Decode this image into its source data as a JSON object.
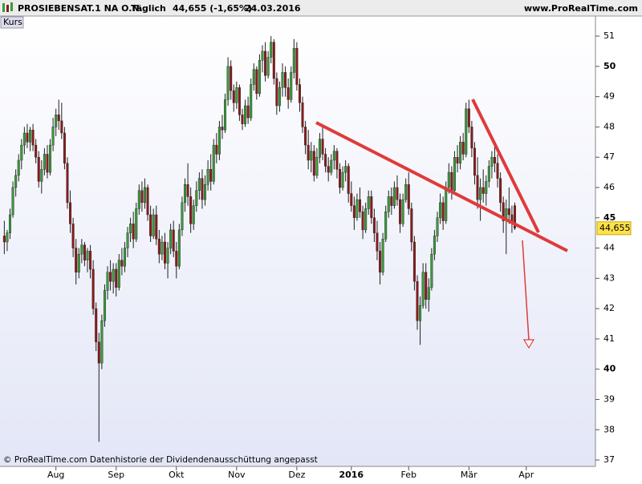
{
  "header": {
    "title": "PROSIEBENSAT.1  NA O.N.",
    "period": "Täglich",
    "quote": "44,655 (-1,65%)",
    "date": "24.03.2016",
    "source": "www.ProRealTime.com"
  },
  "panel_label": "Kurs",
  "footer": "© ProRealTime.com Datenhistorie der Dividendenausschüttung angepasst",
  "chart_data": {
    "type": "candlestick",
    "up_color": "#3a9a3a",
    "down_color": "#8b1a1a",
    "last_price_label": "44,655",
    "xlim": [
      -1.5,
      204.5
    ],
    "xticks": [
      {
        "value": 18,
        "label": "Aug"
      },
      {
        "value": 39,
        "label": "Sep"
      },
      {
        "value": 60,
        "label": "Okt"
      },
      {
        "value": 81,
        "label": "Nov"
      },
      {
        "value": 102,
        "label": "Dez"
      },
      {
        "value": 121,
        "label": "2016"
      },
      {
        "value": 141,
        "label": "Feb"
      },
      {
        "value": 162,
        "label": "Mär"
      },
      {
        "value": 182,
        "label": "Apr"
      }
    ],
    "ylim": [
      36.79,
      51.61
    ],
    "yticks": [
      37,
      38,
      39,
      40,
      41,
      42,
      43,
      44,
      45,
      46,
      47,
      48,
      49,
      50,
      51
    ],
    "ohlc": [
      [
        44.4,
        44.9,
        43.8,
        44.2
      ],
      [
        44.2,
        44.6,
        43.9,
        44.5
      ],
      [
        44.5,
        45.3,
        44.3,
        45.1
      ],
      [
        45.1,
        46.2,
        45.0,
        46.0
      ],
      [
        46.0,
        46.6,
        45.7,
        46.4
      ],
      [
        46.4,
        47.1,
        46.2,
        46.9
      ],
      [
        46.9,
        47.6,
        46.6,
        47.4
      ],
      [
        47.4,
        48.0,
        47.1,
        47.8
      ],
      [
        47.8,
        48.1,
        47.3,
        47.5
      ],
      [
        47.5,
        48.0,
        47.2,
        47.9
      ],
      [
        47.9,
        48.1,
        47.2,
        47.4
      ],
      [
        47.4,
        47.6,
        46.8,
        47.0
      ],
      [
        47.0,
        47.2,
        46.0,
        46.2
      ],
      [
        46.2,
        46.9,
        45.8,
        46.6
      ],
      [
        46.6,
        47.3,
        46.4,
        47.1
      ],
      [
        47.1,
        47.4,
        46.3,
        46.5
      ],
      [
        46.5,
        47.6,
        46.4,
        47.4
      ],
      [
        47.4,
        48.3,
        47.2,
        48.0
      ],
      [
        48.0,
        48.6,
        47.7,
        48.4
      ],
      [
        48.4,
        48.9,
        47.9,
        48.2
      ],
      [
        48.2,
        48.8,
        47.6,
        47.8
      ],
      [
        47.8,
        48.0,
        46.6,
        46.8
      ],
      [
        46.8,
        47.0,
        45.3,
        45.5
      ],
      [
        45.5,
        45.9,
        44.5,
        44.8
      ],
      [
        44.8,
        45.0,
        43.7,
        44.0
      ],
      [
        44.0,
        44.3,
        42.8,
        43.2
      ],
      [
        43.2,
        44.0,
        43.0,
        43.8
      ],
      [
        43.8,
        44.3,
        43.5,
        44.1
      ],
      [
        44.1,
        44.2,
        43.4,
        43.6
      ],
      [
        43.6,
        44.0,
        43.2,
        43.9
      ],
      [
        43.9,
        44.1,
        43.0,
        43.3
      ],
      [
        43.3,
        43.6,
        41.8,
        42.0
      ],
      [
        42.0,
        42.2,
        40.6,
        40.9
      ],
      [
        40.9,
        41.2,
        37.6,
        40.2
      ],
      [
        40.2,
        41.8,
        40.0,
        41.6
      ],
      [
        41.6,
        42.8,
        41.4,
        42.6
      ],
      [
        42.6,
        43.4,
        42.3,
        43.2
      ],
      [
        43.2,
        43.6,
        42.6,
        42.9
      ],
      [
        42.9,
        43.5,
        42.5,
        43.3
      ],
      [
        43.3,
        43.5,
        42.4,
        42.7
      ],
      [
        42.7,
        43.8,
        42.6,
        43.6
      ],
      [
        43.6,
        44.0,
        43.1,
        43.4
      ],
      [
        43.4,
        44.2,
        43.2,
        44.0
      ],
      [
        44.0,
        44.7,
        43.7,
        44.5
      ],
      [
        44.5,
        45.0,
        44.2,
        44.8
      ],
      [
        44.8,
        45.2,
        44.0,
        44.3
      ],
      [
        44.3,
        45.5,
        44.2,
        45.3
      ],
      [
        45.3,
        46.1,
        45.1,
        45.9
      ],
      [
        45.9,
        46.2,
        45.2,
        45.5
      ],
      [
        45.5,
        46.3,
        45.3,
        46.0
      ],
      [
        46.0,
        46.1,
        44.9,
        45.1
      ],
      [
        45.1,
        45.4,
        44.2,
        44.4
      ],
      [
        44.4,
        45.3,
        44.3,
        45.1
      ],
      [
        45.1,
        45.4,
        44.1,
        44.3
      ],
      [
        44.3,
        44.6,
        43.5,
        43.8
      ],
      [
        43.8,
        44.4,
        43.6,
        44.2
      ],
      [
        44.2,
        44.5,
        43.3,
        43.5
      ],
      [
        43.5,
        44.2,
        43.0,
        44.0
      ],
      [
        44.0,
        44.8,
        43.8,
        44.6
      ],
      [
        44.6,
        44.9,
        43.7,
        43.9
      ],
      [
        43.9,
        44.2,
        43.0,
        43.4
      ],
      [
        43.4,
        44.8,
        43.3,
        44.6
      ],
      [
        44.6,
        45.7,
        44.4,
        45.5
      ],
      [
        45.5,
        46.3,
        45.2,
        46.1
      ],
      [
        46.1,
        46.8,
        45.4,
        45.7
      ],
      [
        45.7,
        46.0,
        44.5,
        44.8
      ],
      [
        44.8,
        45.6,
        44.6,
        45.4
      ],
      [
        45.4,
        46.2,
        45.2,
        45.9
      ],
      [
        45.9,
        46.5,
        45.6,
        46.3
      ],
      [
        46.3,
        46.6,
        45.3,
        45.6
      ],
      [
        45.6,
        46.4,
        45.4,
        46.1
      ],
      [
        46.1,
        46.9,
        45.9,
        46.6
      ],
      [
        46.6,
        47.1,
        45.9,
        46.2
      ],
      [
        46.2,
        47.6,
        46.1,
        47.4
      ],
      [
        47.4,
        47.8,
        46.8,
        47.1
      ],
      [
        47.1,
        48.2,
        46.9,
        48.0
      ],
      [
        48.0,
        48.4,
        47.6,
        47.9
      ],
      [
        47.9,
        49.1,
        47.8,
        48.9
      ],
      [
        48.9,
        50.3,
        48.7,
        50.0
      ],
      [
        50.0,
        50.2,
        48.9,
        49.2
      ],
      [
        49.2,
        49.4,
        48.5,
        48.8
      ],
      [
        48.8,
        49.5,
        48.6,
        49.3
      ],
      [
        49.3,
        49.4,
        48.2,
        48.4
      ],
      [
        48.4,
        48.6,
        47.9,
        48.1
      ],
      [
        48.1,
        48.9,
        48.0,
        48.7
      ],
      [
        48.7,
        49.0,
        48.1,
        48.3
      ],
      [
        48.3,
        49.6,
        48.2,
        49.4
      ],
      [
        49.4,
        50.1,
        49.2,
        49.9
      ],
      [
        49.9,
        50.0,
        48.9,
        49.1
      ],
      [
        49.1,
        50.4,
        49.0,
        50.2
      ],
      [
        50.2,
        50.7,
        49.8,
        50.5
      ],
      [
        50.5,
        50.8,
        49.5,
        49.7
      ],
      [
        49.7,
        50.5,
        49.6,
        50.3
      ],
      [
        50.3,
        51.0,
        50.1,
        50.8
      ],
      [
        50.8,
        50.9,
        49.4,
        49.6
      ],
      [
        49.6,
        49.8,
        48.4,
        48.7
      ],
      [
        48.7,
        49.5,
        48.5,
        49.3
      ],
      [
        49.3,
        50.1,
        49.0,
        49.8
      ],
      [
        49.8,
        50.0,
        49.0,
        49.3
      ],
      [
        49.3,
        49.6,
        48.6,
        48.9
      ],
      [
        48.9,
        50.0,
        48.8,
        49.8
      ],
      [
        49.8,
        50.9,
        49.6,
        50.6
      ],
      [
        50.6,
        50.8,
        49.2,
        49.4
      ],
      [
        49.4,
        49.6,
        48.5,
        48.8
      ],
      [
        48.8,
        49.0,
        47.8,
        48.0
      ],
      [
        48.0,
        48.2,
        47.1,
        47.4
      ],
      [
        47.4,
        47.9,
        46.6,
        46.9
      ],
      [
        46.9,
        47.5,
        46.5,
        47.2
      ],
      [
        47.2,
        47.4,
        46.2,
        46.4
      ],
      [
        46.4,
        47.3,
        46.3,
        47.0
      ],
      [
        47.0,
        47.8,
        46.8,
        47.6
      ],
      [
        47.6,
        48.0,
        46.9,
        47.1
      ],
      [
        47.1,
        47.3,
        46.5,
        46.7
      ],
      [
        46.7,
        47.0,
        46.2,
        46.5
      ],
      [
        46.5,
        47.1,
        46.4,
        46.9
      ],
      [
        46.9,
        47.4,
        46.6,
        47.2
      ],
      [
        47.2,
        47.3,
        46.3,
        46.6
      ],
      [
        46.6,
        46.8,
        45.8,
        46.0
      ],
      [
        46.0,
        46.7,
        45.9,
        46.5
      ],
      [
        46.5,
        46.9,
        46.2,
        46.7
      ],
      [
        46.7,
        46.8,
        45.5,
        45.8
      ],
      [
        45.8,
        46.2,
        45.2,
        45.4
      ],
      [
        45.4,
        45.7,
        44.6,
        45.0
      ],
      [
        45.0,
        45.8,
        44.9,
        45.6
      ],
      [
        45.6,
        46.0,
        45.0,
        45.2
      ],
      [
        45.2,
        45.4,
        44.3,
        44.6
      ],
      [
        44.6,
        45.5,
        44.5,
        45.3
      ],
      [
        45.3,
        45.9,
        45.1,
        45.7
      ],
      [
        45.7,
        45.9,
        44.8,
        45.0
      ],
      [
        45.0,
        45.3,
        44.2,
        44.5
      ],
      [
        44.5,
        44.9,
        43.6,
        43.9
      ],
      [
        43.9,
        44.2,
        42.8,
        43.2
      ],
      [
        43.2,
        44.5,
        43.1,
        44.3
      ],
      [
        44.3,
        45.4,
        44.2,
        45.2
      ],
      [
        45.2,
        45.9,
        45.0,
        45.7
      ],
      [
        45.7,
        46.0,
        45.1,
        45.4
      ],
      [
        45.4,
        46.2,
        45.3,
        46.0
      ],
      [
        46.0,
        46.4,
        45.4,
        45.6
      ],
      [
        45.6,
        45.8,
        44.5,
        44.8
      ],
      [
        44.8,
        45.8,
        44.7,
        45.6
      ],
      [
        45.6,
        46.3,
        45.5,
        46.1
      ],
      [
        46.1,
        46.5,
        45.1,
        45.3
      ],
      [
        45.3,
        45.5,
        43.9,
        44.2
      ],
      [
        44.2,
        44.4,
        42.6,
        42.9
      ],
      [
        42.9,
        43.1,
        41.3,
        41.6
      ],
      [
        41.6,
        42.4,
        40.8,
        42.1
      ],
      [
        42.1,
        43.5,
        42.0,
        43.2
      ],
      [
        43.2,
        43.5,
        42.0,
        42.3
      ],
      [
        42.3,
        43.0,
        41.9,
        42.7
      ],
      [
        42.7,
        44.0,
        42.6,
        43.8
      ],
      [
        43.8,
        44.6,
        43.6,
        44.4
      ],
      [
        44.4,
        45.2,
        44.2,
        45.0
      ],
      [
        45.0,
        45.8,
        44.8,
        45.5
      ],
      [
        45.5,
        45.7,
        44.6,
        44.9
      ],
      [
        44.9,
        46.2,
        44.8,
        46.0
      ],
      [
        46.0,
        46.8,
        45.8,
        46.5
      ],
      [
        46.5,
        46.7,
        45.6,
        45.9
      ],
      [
        45.9,
        47.2,
        45.8,
        47.0
      ],
      [
        47.0,
        47.4,
        46.5,
        46.8
      ],
      [
        46.8,
        47.7,
        46.6,
        47.5
      ],
      [
        47.5,
        47.8,
        46.9,
        47.1
      ],
      [
        47.1,
        48.8,
        47.0,
        48.6
      ],
      [
        48.6,
        48.9,
        47.8,
        48.0
      ],
      [
        48.0,
        48.2,
        47.0,
        47.3
      ],
      [
        47.3,
        47.5,
        46.1,
        46.4
      ],
      [
        46.4,
        47.0,
        45.3,
        45.6
      ],
      [
        45.6,
        46.3,
        44.9,
        46.0
      ],
      [
        46.0,
        46.6,
        45.5,
        45.8
      ],
      [
        45.8,
        46.4,
        45.4,
        46.2
      ],
      [
        46.2,
        46.9,
        46.0,
        46.7
      ],
      [
        46.7,
        47.2,
        46.3,
        47.0
      ],
      [
        47.0,
        47.4,
        46.5,
        46.8
      ],
      [
        46.8,
        47.1,
        46.0,
        46.3
      ],
      [
        46.3,
        46.5,
        45.2,
        45.5
      ],
      [
        45.5,
        45.7,
        44.5,
        44.9
      ],
      [
        44.9,
        45.6,
        43.8,
        45.3
      ],
      [
        45.3,
        46.0,
        44.8,
        45.1
      ],
      [
        45.1,
        45.4,
        44.5,
        44.8
      ],
      [
        45.4,
        45.5,
        44.6,
        44.655
      ]
    ]
  }
}
